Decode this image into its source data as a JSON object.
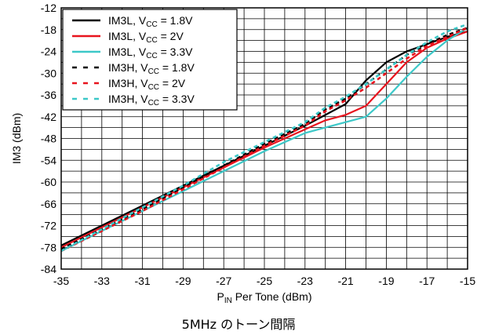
{
  "caption": "5MHz のトーン間隔",
  "chart_data": {
    "type": "line",
    "xlabel": "P_IN Per Tone (dBm)",
    "ylabel": "IM3 (dBm)",
    "xlim": [
      -35,
      -15
    ],
    "ylim": [
      -84,
      -12
    ],
    "xticks": [
      -35,
      -33,
      -31,
      -29,
      -27,
      -25,
      -23,
      -21,
      -19,
      -17,
      -15
    ],
    "yticks": [
      -12,
      -18,
      -24,
      -30,
      -36,
      -42,
      -48,
      -54,
      -60,
      -66,
      -72,
      -78,
      -84
    ],
    "grid": true,
    "legend_position": "top-left",
    "series": [
      {
        "name": "IM3L, VCC = 1.8V",
        "sub": "CC",
        "label_pre": "IM3L, V",
        "label_post": " = 1.8V",
        "color": "#000000",
        "dash": "solid",
        "x": [
          -35,
          -33,
          -31,
          -29,
          -27,
          -25,
          -23,
          -21,
          -20,
          -19,
          -18,
          -17,
          -16,
          -15
        ],
        "y": [
          -77.5,
          -72,
          -66.5,
          -61,
          -55.5,
          -50,
          -44.5,
          -38.5,
          -32,
          -27,
          -24,
          -22,
          -20,
          -18.5
        ]
      },
      {
        "name": "IM3L, VCC = 2V",
        "sub": "CC",
        "label_pre": "IM3L, V",
        "label_post": " = 2V",
        "color": "#e8141e",
        "dash": "solid",
        "x": [
          -35,
          -33,
          -31,
          -29,
          -27,
          -25,
          -23,
          -22,
          -21,
          -20,
          -19,
          -18,
          -17,
          -16,
          -15
        ],
        "y": [
          -78,
          -72.5,
          -67,
          -61.5,
          -56,
          -50.5,
          -45.5,
          -43,
          -41.5,
          -39,
          -33,
          -27,
          -23,
          -20.5,
          -18.5
        ]
      },
      {
        "name": "IM3L, VCC = 3.3V",
        "sub": "CC",
        "label_pre": "IM3L, V",
        "label_post": " = 3.3V",
        "color": "#3cc8c8",
        "dash": "solid",
        "x": [
          -35,
          -33,
          -31,
          -29,
          -27,
          -25,
          -23,
          -22,
          -21,
          -20,
          -19,
          -18,
          -17,
          -16,
          -15
        ],
        "y": [
          -79,
          -73.5,
          -68,
          -62.5,
          -57,
          -51.5,
          -46.5,
          -45,
          -43.5,
          -42,
          -37,
          -31,
          -25.5,
          -21,
          -17.5
        ]
      },
      {
        "name": "IM3H, VCC = 1.8V",
        "sub": "CC",
        "label_pre": "IM3H, V",
        "label_post": " = 1.8V",
        "color": "#000000",
        "dash": "dashed",
        "x": [
          -35,
          -33,
          -31,
          -29,
          -27,
          -25,
          -23,
          -22,
          -21,
          -20,
          -19,
          -18,
          -17,
          -16,
          -15
        ],
        "y": [
          -78.5,
          -73,
          -67.5,
          -61.5,
          -55.5,
          -49.5,
          -44,
          -40,
          -37,
          -33,
          -29,
          -25,
          -22,
          -19.5,
          -17.5
        ]
      },
      {
        "name": "IM3H, VCC = 2V",
        "sub": "CC",
        "label_pre": "IM3H, V",
        "label_post": " = 2V",
        "color": "#e8141e",
        "dash": "dashed",
        "x": [
          -35,
          -33,
          -31,
          -29,
          -27,
          -25,
          -23,
          -22,
          -21,
          -20,
          -19,
          -18,
          -17,
          -16,
          -15
        ],
        "y": [
          -79,
          -73.5,
          -68,
          -62,
          -56,
          -50,
          -44.5,
          -40.5,
          -37.5,
          -34,
          -30,
          -26,
          -22.5,
          -20,
          -17.5
        ]
      },
      {
        "name": "IM3H, VCC = 3.3V",
        "sub": "CC",
        "label_pre": "IM3H, V",
        "label_post": " = 3.3V",
        "color": "#3cc8c8",
        "dash": "dashed",
        "x": [
          -35,
          -33,
          -31,
          -29,
          -27,
          -25,
          -23,
          -22,
          -21,
          -20,
          -19,
          -18,
          -17,
          -16,
          -15
        ],
        "y": [
          -79,
          -73,
          -67,
          -61,
          -54.5,
          -49,
          -43.5,
          -39.5,
          -36.5,
          -33,
          -29,
          -25,
          -21.5,
          -18.5,
          -16.5
        ]
      }
    ]
  }
}
